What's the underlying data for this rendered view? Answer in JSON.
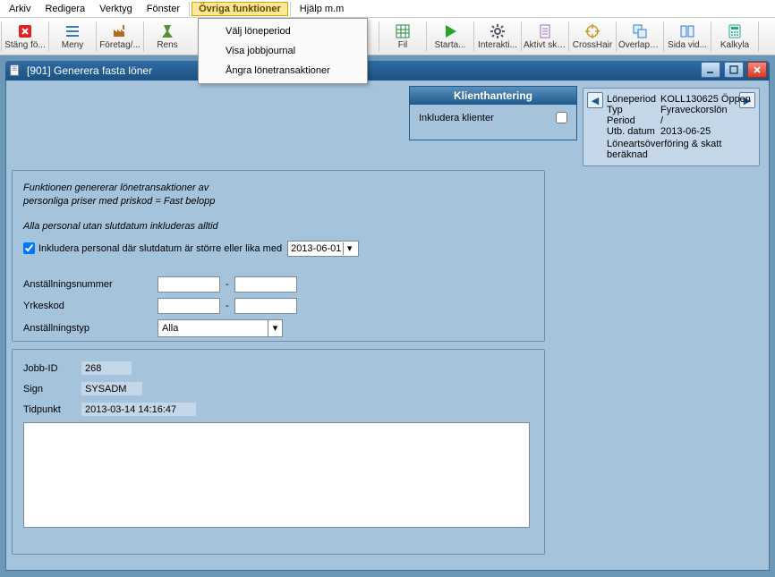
{
  "menubar": {
    "items": [
      "Arkiv",
      "Redigera",
      "Verktyg",
      "Fönster",
      "Övriga funktioner",
      "Hjälp m.m"
    ],
    "activeIndex": 4,
    "dropdown": [
      "Välj löneperiod",
      "Visa jobbjournal",
      "Ångra lönetransaktioner"
    ]
  },
  "toolbar": {
    "buttons": [
      {
        "label": "Stäng fö...",
        "icon": "close-window-icon",
        "color": "#d22"
      },
      {
        "label": "Meny",
        "icon": "menu-icon",
        "color": "#3a78c2"
      },
      {
        "label": "Företag/...",
        "icon": "factory-icon",
        "color": "#b56a1f"
      },
      {
        "label": "Rens",
        "icon": "sweep-icon",
        "color": "#5a8f3a"
      },
      {
        "label": "Fil",
        "icon": "spreadsheet-icon",
        "color": "#1e8a3a"
      },
      {
        "label": "Starta...",
        "icon": "play-icon",
        "color": "#2aa52a"
      },
      {
        "label": "Interakti...",
        "icon": "gear-icon",
        "color": "#556"
      },
      {
        "label": "Aktivt skr...",
        "icon": "document-icon",
        "color": "#9a6bc4"
      },
      {
        "label": "CrossHair",
        "icon": "crosshair-icon",
        "color": "#c89a2e"
      },
      {
        "label": "Överlapp...",
        "icon": "overlap-icon",
        "color": "#3a78c2"
      },
      {
        "label": "Sida vid...",
        "icon": "side-by-side-icon",
        "color": "#3a78c2"
      },
      {
        "label": "Kalkyla",
        "icon": "calculator-icon",
        "color": "#2a8"
      }
    ],
    "bigGapAfterIndex": 3
  },
  "window": {
    "title": "[901]  Generera fasta löner"
  },
  "klient": {
    "header": "Klienthantering",
    "rowLabel": "Inkludera klienter",
    "checked": false
  },
  "info": {
    "rows": [
      {
        "label": "Löneperiod",
        "value": "KOLL130625 Öppen"
      },
      {
        "label": "Typ",
        "value": "Fyraveckorslön"
      },
      {
        "label": "Period",
        "value": "/"
      },
      {
        "label": "Utb. datum",
        "value": "2013-06-25"
      }
    ],
    "footer": "Löneartsöverföring & skatt beräknad"
  },
  "box1": {
    "desc1": "Funktionen genererar lönetransaktioner av",
    "desc2": "personliga priser med priskod = Fast belopp",
    "sub": "Alla personal utan slutdatum inkluderas alltid",
    "includeLabel": "Inkludera personal där slutdatum är större eller lika med",
    "includeChecked": true,
    "date": "2013-06-01",
    "fields": {
      "anstNr": {
        "label": "Anställningsnummer",
        "from": "",
        "to": ""
      },
      "yrkes": {
        "label": "Yrkeskod",
        "from": "",
        "to": ""
      },
      "anstTyp": {
        "label": "Anställningstyp",
        "value": "Alla"
      }
    },
    "dash": "-"
  },
  "box2": {
    "jobIdLabel": "Jobb-ID",
    "jobId": "268",
    "signLabel": "Sign",
    "sign": "SYSADM",
    "timeLabel": "Tidpunkt",
    "time": "2013-03-14 14:16:47",
    "log": ""
  }
}
